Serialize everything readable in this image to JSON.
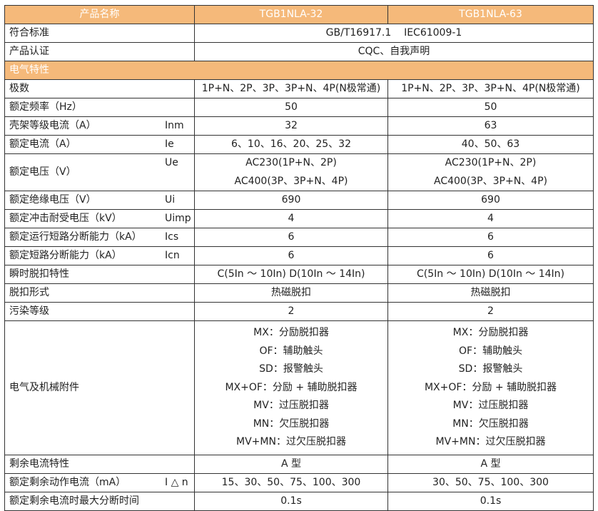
{
  "header": {
    "name": "产品名称",
    "col1": "TGB1NLA-32",
    "col2": "TGB1NLA-63"
  },
  "standard": {
    "label": "符合标准",
    "value": "GB/T16917.1    IEC61009-1"
  },
  "cert": {
    "label": "产品认证",
    "value": "CQC、自我声明"
  },
  "section": "电气特性",
  "rows": [
    {
      "label": "极数",
      "symbol": "",
      "v1": "1P+N、2P、3P、3P+N、4P(N极常通)",
      "v2": "1P+N、2P、3P、3P+N、4P(N极常通)"
    },
    {
      "label": "额定频率（Hz）",
      "symbol": "",
      "v1": "50",
      "v2": "50"
    },
    {
      "label": "壳架等级电流（A）",
      "symbol": "Inm",
      "v1": "32",
      "v2": "63"
    },
    {
      "label": "额定电流（A）",
      "symbol": "Ie",
      "v1": "6、10、16、20、25、32",
      "v2": "40、50、63"
    },
    {
      "label": "额定电压（V）",
      "symbol": "Ue",
      "v1": [
        "AC230(1P+N、2P)",
        "AC400(3P、3P+N、4P)"
      ],
      "v2": [
        "AC230(1P+N、2P)",
        "AC400(3P、3P+N、4P)"
      ]
    },
    {
      "label": "额定绝缘电压（V）",
      "symbol": "Ui",
      "v1": "690",
      "v2": "690"
    },
    {
      "label": "额定冲击耐受电压（kV）",
      "symbol": "Uimp",
      "v1": "4",
      "v2": "4"
    },
    {
      "label": "额定运行短路分断能力（kA）",
      "symbol": "Ics",
      "v1": "6",
      "v2": "6"
    },
    {
      "label": "额定短路分断能力（kA）",
      "symbol": "Icn",
      "v1": "6",
      "v2": "6"
    },
    {
      "label": "瞬时脱扣特性",
      "symbol": "",
      "v1": "C(5In ～ 10In) D(10In ～ 14In)",
      "v2": "C(5In ～ 10In) D(10In ～ 14In)"
    },
    {
      "label": "脱扣形式",
      "symbol": "",
      "v1": "热磁脱扣",
      "v2": "热磁脱扣"
    },
    {
      "label": "污染等级",
      "symbol": "",
      "v1": "2",
      "v2": "2"
    },
    {
      "label": "电气及机械附件",
      "symbol": "",
      "v1": [
        "MX：分励脱扣器",
        "OF：辅助触头",
        "SD：报警触头",
        "MX+OF：分励 + 辅助脱扣器",
        "MV：过压脱扣器",
        "MN：欠压脱扣器",
        "MV+MN：过欠压脱扣器"
      ],
      "v2": [
        "MX：分励脱扣器",
        "OF：辅助触头",
        "SD：报警触头",
        "MX+OF：分励 + 辅助脱扣器",
        "MV：过压脱扣器",
        "MN：欠压脱扣器",
        "MV+MN：过欠压脱扣器"
      ]
    },
    {
      "label": "剩余电流特性",
      "symbol": "",
      "v1": "A 型",
      "v2": "A 型"
    },
    {
      "label": "额定剩余动作电流（mA）",
      "symbol": "I △ n",
      "v1": "15、30、50、75、100、300",
      "v2": "30、50、75、100、300"
    },
    {
      "label": "额定剩余电流时最大分断时间",
      "symbol": "",
      "v1": "0.1s",
      "v2": "0.1s"
    }
  ]
}
